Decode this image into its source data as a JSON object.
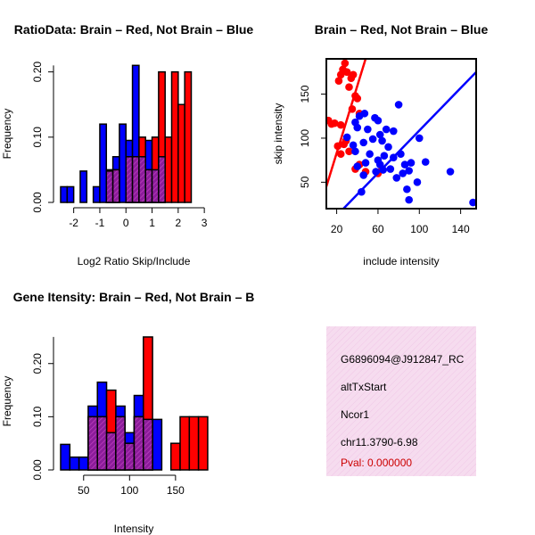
{
  "colors": {
    "brain": "#ff0000",
    "not_brain": "#0000ff",
    "overlap_fill": "#8b1c9a",
    "overlap_hatch": "#c040c0",
    "info_bg": "#f6dcef",
    "pval": "#cc0000"
  },
  "chart_data": [
    {
      "type": "bar",
      "id": "ratio-histogram",
      "title": "RatioData: Brain – Red, Not Brain – Blue",
      "xlabel": "Log2 Ratio Skip/Include",
      "ylabel": "Frequency",
      "xlim": [
        -2.5,
        3.2
      ],
      "ylim": [
        0,
        0.22
      ],
      "xticks": [
        "-2",
        "-1",
        "0",
        "1",
        "2",
        "3"
      ],
      "xtick_values": [
        -2,
        -1,
        0,
        1,
        2,
        3
      ],
      "yticks": [
        "0.00",
        "0.10",
        "0.20"
      ],
      "ytick_values": [
        0,
        0.1,
        0.2
      ],
      "bin_width": 0.25,
      "series": [
        {
          "name": "Not Brain",
          "color": "blue",
          "bars": [
            [
              -2.5,
              0.024
            ],
            [
              -2.25,
              0.024
            ],
            [
              -1.75,
              0.048
            ],
            [
              -1.25,
              0.024
            ],
            [
              -1.0,
              0.12
            ],
            [
              -0.75,
              0.048
            ],
            [
              -0.5,
              0.07
            ],
            [
              -0.25,
              0.12
            ],
            [
              0.0,
              0.095
            ],
            [
              0.25,
              0.21
            ],
            [
              0.5,
              0.07
            ],
            [
              0.75,
              0.095
            ],
            [
              1.0,
              0.05
            ],
            [
              1.25,
              0.07
            ]
          ]
        },
        {
          "name": "Brain",
          "color": "red",
          "bars": [
            [
              -0.75,
              0.05
            ],
            [
              -0.5,
              0.05
            ],
            [
              0.0,
              0.07
            ],
            [
              0.25,
              0.07
            ],
            [
              0.5,
              0.1
            ],
            [
              0.75,
              0.05
            ],
            [
              1.0,
              0.1
            ],
            [
              1.25,
              0.2
            ],
            [
              1.5,
              0.1
            ],
            [
              1.75,
              0.2
            ],
            [
              2.0,
              0.15
            ],
            [
              2.25,
              0.2
            ]
          ]
        }
      ]
    },
    {
      "type": "scatter",
      "id": "intensity-scatter",
      "title": "Brain – Red, Not Brain – Blue",
      "xlabel": "include intensity",
      "ylabel": "skip intensity",
      "xlim": [
        10,
        155
      ],
      "ylim": [
        20,
        190
      ],
      "xticks": [
        "20",
        "60",
        "100",
        "140"
      ],
      "xtick_values": [
        20,
        60,
        100,
        140
      ],
      "yticks": [
        "50",
        "100",
        "150"
      ],
      "ytick_values": [
        50,
        100,
        150
      ],
      "series": [
        {
          "name": "Brain",
          "color": "red",
          "points": [
            [
              28,
              185
            ],
            [
              26,
              178
            ],
            [
              30,
              175
            ],
            [
              24,
              172
            ],
            [
              36,
              172
            ],
            [
              34,
              168
            ],
            [
              22,
              165
            ],
            [
              32,
              158
            ],
            [
              38,
              148
            ],
            [
              40,
              145
            ],
            [
              35,
              133
            ],
            [
              42,
              128
            ],
            [
              12,
              120
            ],
            [
              18,
              117
            ],
            [
              15,
              116
            ],
            [
              24,
              115
            ],
            [
              29,
              97
            ],
            [
              27,
              93
            ],
            [
              21,
              91
            ],
            [
              32,
              85
            ],
            [
              24,
              82
            ],
            [
              42,
              70
            ],
            [
              38,
              65
            ],
            [
              48,
              62
            ],
            [
              60,
              60
            ],
            [
              64,
              65
            ]
          ],
          "fit": [
            [
              10,
              45
            ],
            [
              48,
              190
            ]
          ]
        },
        {
          "name": "Not Brain",
          "color": "blue",
          "points": [
            [
              42,
              125
            ],
            [
              47,
              128
            ],
            [
              57,
              123
            ],
            [
              38,
              118
            ],
            [
              60,
              120
            ],
            [
              68,
              110
            ],
            [
              75,
              108
            ],
            [
              40,
              112
            ],
            [
              50,
              110
            ],
            [
              62,
              104
            ],
            [
              30,
              101
            ],
            [
              55,
              99
            ],
            [
              64,
              97
            ],
            [
              36,
              92
            ],
            [
              46,
              95
            ],
            [
              70,
              90
            ],
            [
              80,
              138
            ],
            [
              38,
              85
            ],
            [
              52,
              82
            ],
            [
              66,
              80
            ],
            [
              82,
              82
            ],
            [
              75,
              78
            ],
            [
              60,
              75
            ],
            [
              48,
              72
            ],
            [
              92,
              72
            ],
            [
              86,
              70
            ],
            [
              40,
              68
            ],
            [
              62,
              70
            ],
            [
              72,
              65
            ],
            [
              90,
              63
            ],
            [
              58,
              62
            ],
            [
              46,
              58
            ],
            [
              84,
              60
            ],
            [
              78,
              55
            ],
            [
              65,
              64
            ],
            [
              100,
              100
            ],
            [
              106,
              73
            ],
            [
              98,
              50
            ],
            [
              130,
              62
            ],
            [
              88,
              42
            ],
            [
              44,
              39
            ],
            [
              90,
              30
            ],
            [
              152,
              27
            ]
          ],
          "fit": [
            [
              10,
              0
            ],
            [
              155,
              175
            ]
          ]
        }
      ]
    },
    {
      "type": "bar",
      "id": "intensity-histogram",
      "title": "Gene Itensity: Brain – Red, Not Brain – B",
      "xlabel": "Intensity",
      "ylabel": "Frequency",
      "xlim": [
        25,
        187
      ],
      "ylim": [
        0,
        0.27
      ],
      "xticks": [
        "50",
        "100",
        "150"
      ],
      "xtick_values": [
        50,
        100,
        150
      ],
      "yticks": [
        "0.00",
        "0.10",
        "0.20"
      ],
      "ytick_values": [
        0,
        0.1,
        0.2
      ],
      "bin_width": 10,
      "series": [
        {
          "name": "Not Brain",
          "color": "blue",
          "bars": [
            [
              25,
              0.048
            ],
            [
              35,
              0.024
            ],
            [
              45,
              0.024
            ],
            [
              55,
              0.12
            ],
            [
              65,
              0.165
            ],
            [
              75,
              0.07
            ],
            [
              85,
              0.12
            ],
            [
              95,
              0.07
            ],
            [
              105,
              0.14
            ],
            [
              115,
              0.095
            ],
            [
              125,
              0.095
            ]
          ]
        },
        {
          "name": "Brain",
          "color": "red",
          "bars": [
            [
              55,
              0.1
            ],
            [
              65,
              0.1
            ],
            [
              75,
              0.15
            ],
            [
              85,
              0.1
            ],
            [
              95,
              0.05
            ],
            [
              105,
              0.1
            ],
            [
              115,
              0.25
            ],
            [
              145,
              0.05
            ],
            [
              155,
              0.1
            ],
            [
              165,
              0.1
            ],
            [
              175,
              0.1
            ]
          ]
        }
      ]
    }
  ],
  "info_panel": {
    "id_line": "G6896094@J912847_RC",
    "event_type": "altTxStart",
    "gene": "Ncor1",
    "location": "chr11.3790-6.98",
    "pval": "Pval: 0.000000"
  }
}
